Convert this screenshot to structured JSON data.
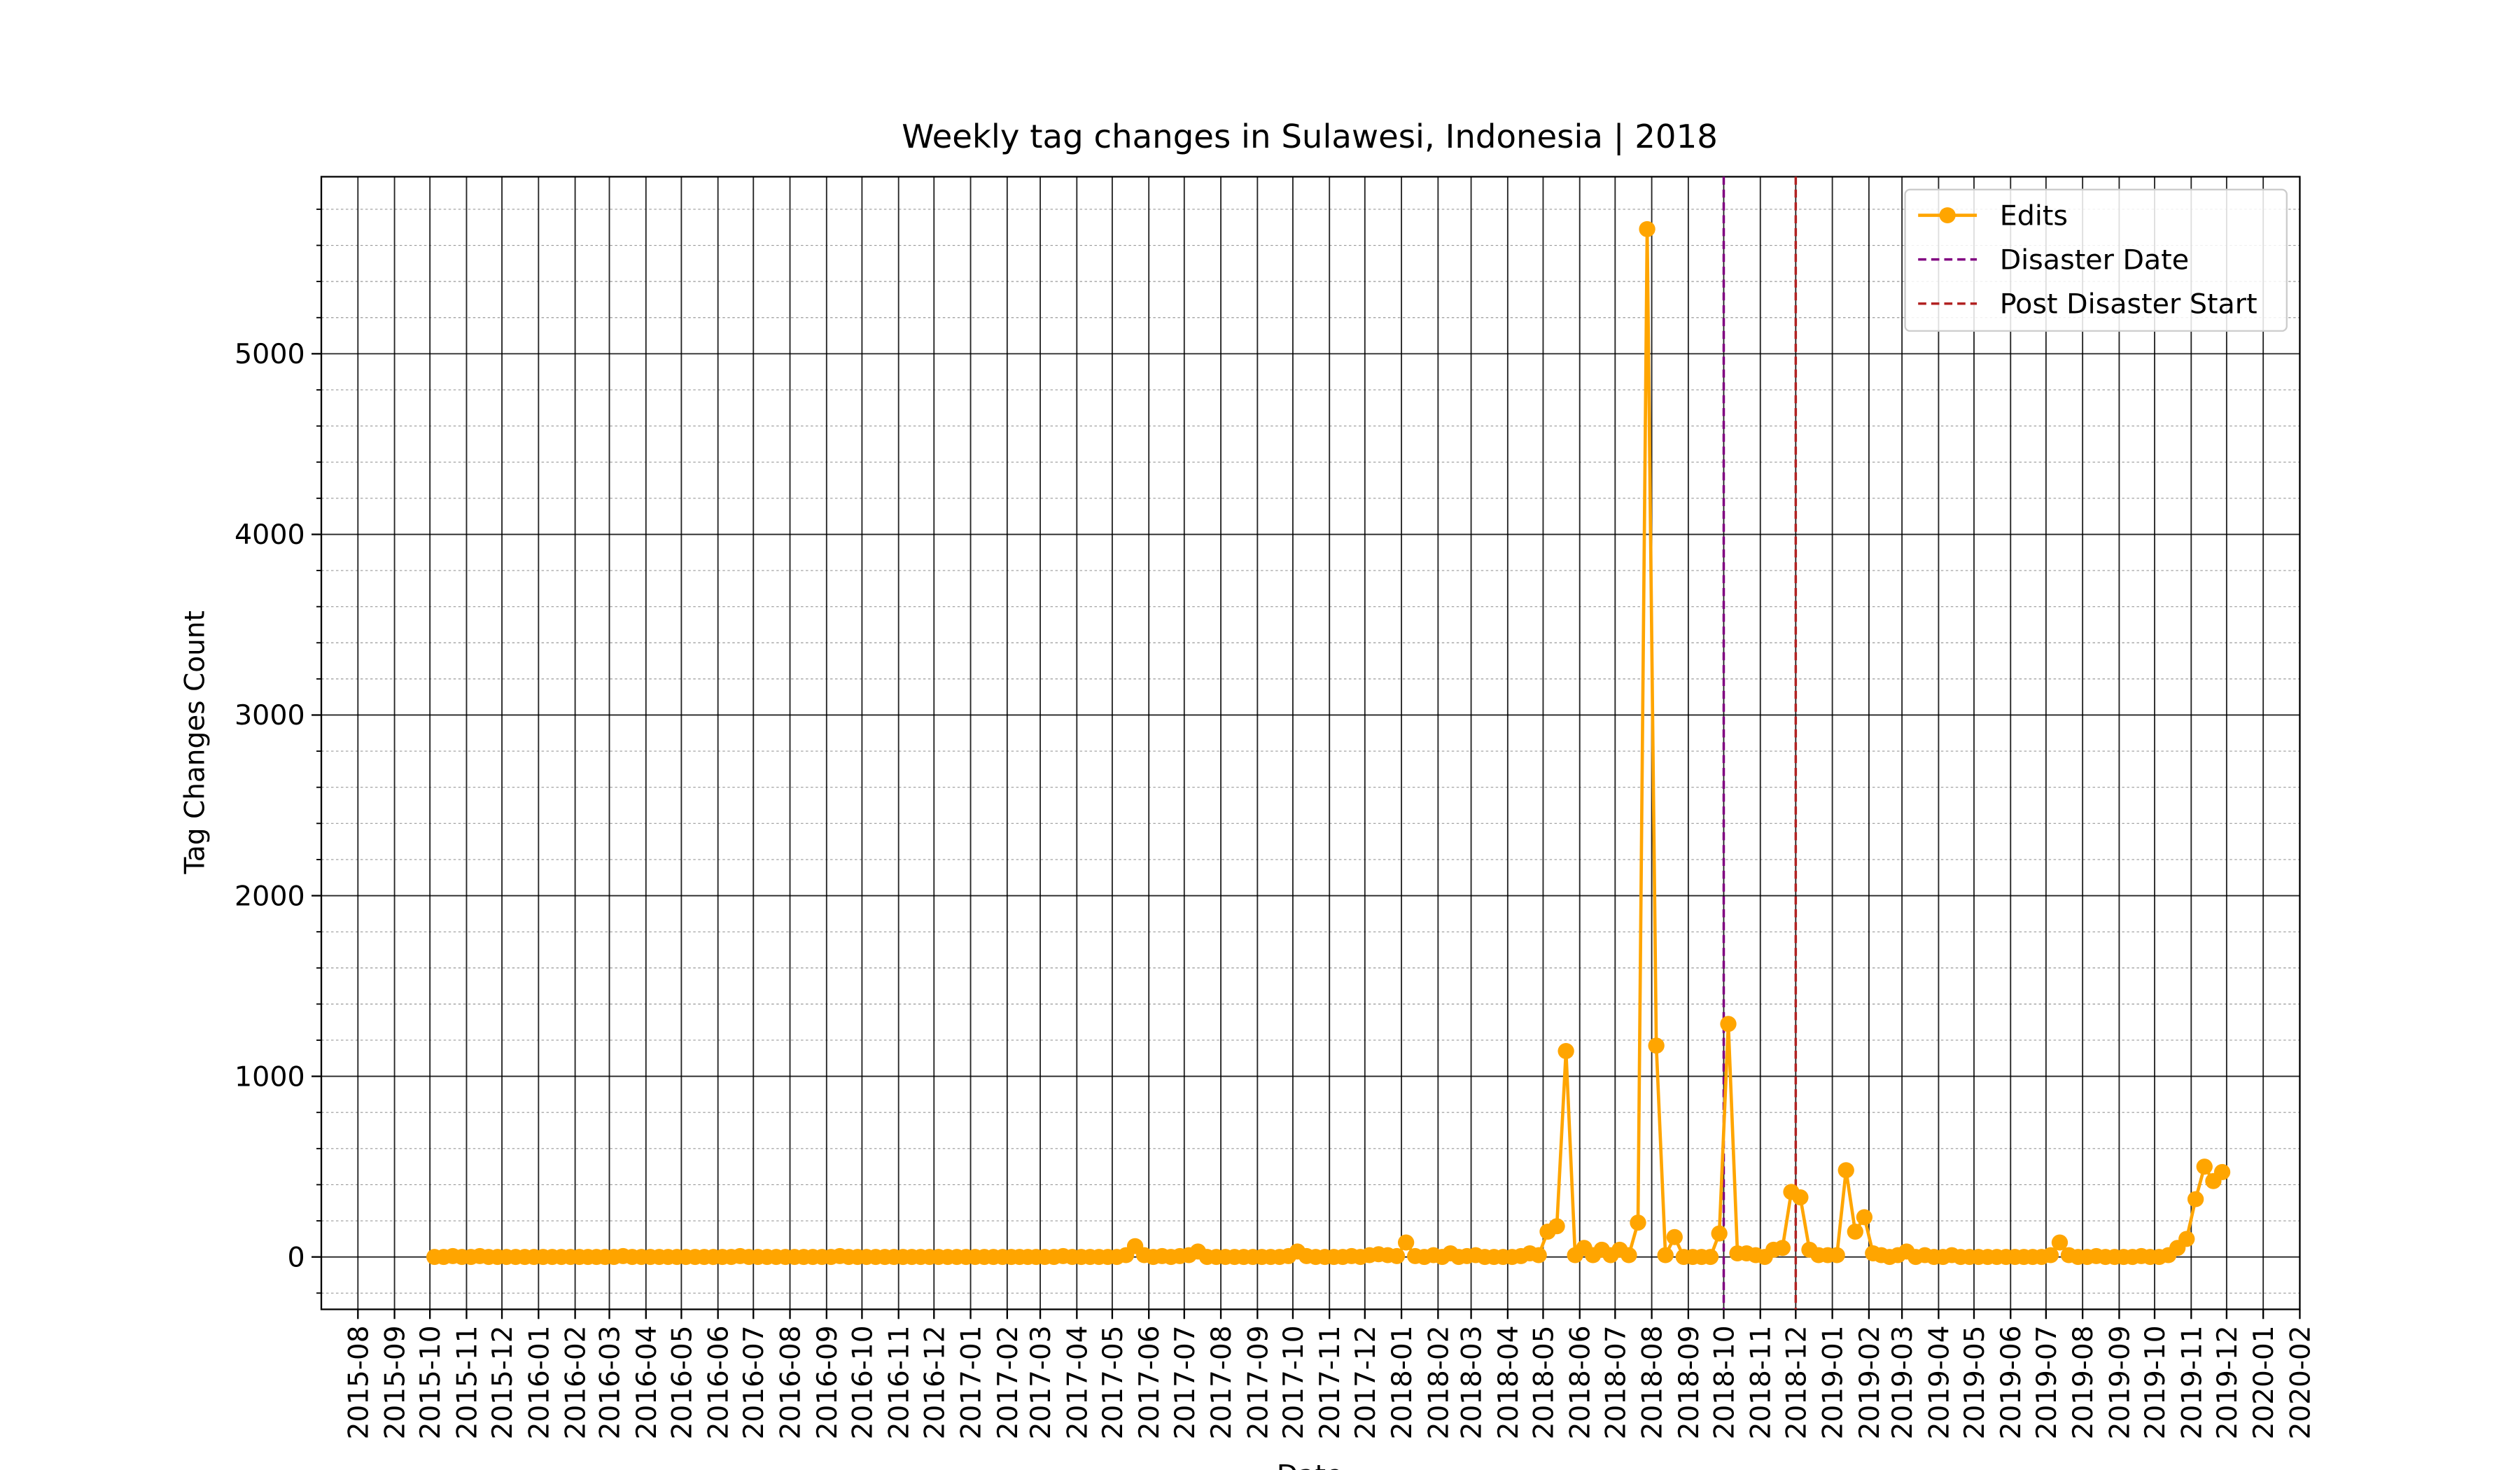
{
  "chart_data": {
    "type": "line",
    "title": "Weekly tag changes in Sulawesi, Indonesia | 2018",
    "xlabel": "Date",
    "ylabel": "Tag Changes Count",
    "x": [
      "2015-10",
      "2015-10",
      "2015-10",
      "2015-10",
      "2015-11",
      "2015-11",
      "2015-11",
      "2015-11",
      "2015-12",
      "2015-12",
      "2015-12",
      "2015-12",
      "2016-01",
      "2016-01",
      "2016-01",
      "2016-01",
      "2016-02",
      "2016-02",
      "2016-02",
      "2016-02",
      "2016-03",
      "2016-03",
      "2016-03",
      "2016-03",
      "2016-04",
      "2016-04",
      "2016-04",
      "2016-04",
      "2016-05",
      "2016-05",
      "2016-05",
      "2016-05",
      "2016-06",
      "2016-06",
      "2016-06",
      "2016-06",
      "2016-07",
      "2016-07",
      "2016-07",
      "2016-07",
      "2016-08",
      "2016-08",
      "2016-08",
      "2016-08",
      "2016-09",
      "2016-09",
      "2016-09",
      "2016-09",
      "2016-10",
      "2016-10",
      "2016-10",
      "2016-10",
      "2016-11",
      "2016-11",
      "2016-11",
      "2016-11",
      "2016-12",
      "2016-12",
      "2016-12",
      "2016-12",
      "2017-01",
      "2017-01",
      "2017-01",
      "2017-01",
      "2017-02",
      "2017-02",
      "2017-02",
      "2017-02",
      "2017-03",
      "2017-03",
      "2017-03",
      "2017-03",
      "2017-04",
      "2017-04",
      "2017-04",
      "2017-04",
      "2017-05",
      "2017-05",
      "2017-05",
      "2017-05",
      "2017-06",
      "2017-06",
      "2017-06",
      "2017-06",
      "2017-07",
      "2017-07",
      "2017-07",
      "2017-07",
      "2017-08",
      "2017-08",
      "2017-08",
      "2017-08",
      "2017-09",
      "2017-09",
      "2017-09",
      "2017-09",
      "2017-10",
      "2017-10",
      "2017-10",
      "2017-10",
      "2017-11",
      "2017-11",
      "2017-11",
      "2017-11",
      "2017-12",
      "2017-12",
      "2017-12",
      "2017-12",
      "2018-01",
      "2018-01",
      "2018-01",
      "2018-01",
      "2018-02",
      "2018-02",
      "2018-02",
      "2018-02",
      "2018-03",
      "2018-03",
      "2018-03",
      "2018-03",
      "2018-04",
      "2018-04",
      "2018-04",
      "2018-04",
      "2018-05",
      "2018-05",
      "2018-05",
      "2018-05",
      "2018-06",
      "2018-06",
      "2018-06",
      "2018-06",
      "2018-07",
      "2018-07",
      "2018-07",
      "2018-07",
      "2018-08",
      "2018-08",
      "2018-08",
      "2018-08",
      "2018-09",
      "2018-09",
      "2018-09",
      "2018-09",
      "2018-10",
      "2018-10",
      "2018-10",
      "2018-10",
      "2018-11",
      "2018-11",
      "2018-11",
      "2018-11",
      "2018-12",
      "2018-12",
      "2018-12",
      "2018-12",
      "2019-01",
      "2019-01",
      "2019-01",
      "2019-01",
      "2019-02",
      "2019-02",
      "2019-02",
      "2019-02",
      "2019-03",
      "2019-03",
      "2019-03",
      "2019-03",
      "2019-04",
      "2019-04",
      "2019-04",
      "2019-04",
      "2019-05",
      "2019-05",
      "2019-05",
      "2019-05",
      "2019-06",
      "2019-06",
      "2019-06",
      "2019-06",
      "2019-07",
      "2019-07",
      "2019-07",
      "2019-07",
      "2019-08",
      "2019-08",
      "2019-08",
      "2019-08",
      "2019-09",
      "2019-09",
      "2019-09",
      "2019-09",
      "2019-10",
      "2019-10",
      "2019-10",
      "2019-10",
      "2019-11",
      "2019-11",
      "2019-11",
      "2019-11"
    ],
    "series": [
      {
        "name": "Edits",
        "color": "#ffa500",
        "values": [
          0,
          0,
          5,
          0,
          0,
          5,
          0,
          0,
          0,
          0,
          0,
          0,
          0,
          0,
          0,
          0,
          0,
          0,
          0,
          0,
          0,
          5,
          0,
          0,
          0,
          0,
          0,
          0,
          0,
          0,
          0,
          0,
          0,
          0,
          5,
          0,
          0,
          0,
          0,
          0,
          0,
          0,
          0,
          0,
          0,
          5,
          0,
          0,
          0,
          0,
          0,
          0,
          0,
          0,
          0,
          0,
          0,
          0,
          0,
          0,
          0,
          0,
          0,
          0,
          0,
          0,
          0,
          0,
          0,
          0,
          5,
          0,
          0,
          0,
          0,
          0,
          0,
          10,
          60,
          10,
          0,
          5,
          0,
          5,
          10,
          30,
          0,
          0,
          0,
          0,
          0,
          0,
          0,
          0,
          0,
          5,
          30,
          5,
          0,
          0,
          0,
          0,
          5,
          0,
          10,
          15,
          10,
          5,
          80,
          5,
          0,
          10,
          0,
          20,
          0,
          5,
          10,
          0,
          0,
          0,
          0,
          5,
          20,
          10,
          140,
          170,
          1140,
          10,
          50,
          10,
          40,
          10,
          40,
          10,
          190,
          5690,
          1170,
          10,
          110,
          0,
          0,
          0,
          0,
          130,
          1290,
          20,
          20,
          10,
          0,
          40,
          50,
          360,
          330,
          40,
          10,
          10,
          10,
          480,
          140,
          220,
          20,
          10,
          0,
          10,
          30,
          0,
          10,
          0,
          0,
          10,
          0,
          0,
          0,
          0,
          0,
          0,
          0,
          0,
          0,
          0,
          10,
          80,
          10,
          0,
          0,
          5,
          0,
          0,
          0,
          0,
          5,
          0,
          0,
          10,
          50,
          100,
          320,
          500,
          420,
          470
        ]
      }
    ],
    "vlines": [
      {
        "name": "Disaster Date",
        "color": "#800080",
        "x": "2018-10"
      },
      {
        "name": "Post Disaster Start",
        "color": "#b22222",
        "x": "2018-12"
      }
    ],
    "xlim": [
      "2015-07",
      "2020-02"
    ],
    "xticks": [
      "2015-08",
      "2015-09",
      "2015-10",
      "2015-11",
      "2015-12",
      "2016-01",
      "2016-02",
      "2016-03",
      "2016-04",
      "2016-05",
      "2016-06",
      "2016-07",
      "2016-08",
      "2016-09",
      "2016-10",
      "2016-11",
      "2016-12",
      "2017-01",
      "2017-02",
      "2017-03",
      "2017-04",
      "2017-05",
      "2017-06",
      "2017-07",
      "2017-08",
      "2017-09",
      "2017-10",
      "2017-11",
      "2017-12",
      "2018-01",
      "2018-02",
      "2018-03",
      "2018-04",
      "2018-05",
      "2018-06",
      "2018-07",
      "2018-08",
      "2018-09",
      "2018-10",
      "2018-11",
      "2018-12",
      "2019-01",
      "2019-02",
      "2019-03",
      "2019-04",
      "2019-05",
      "2019-06",
      "2019-07",
      "2019-08",
      "2019-09",
      "2019-10",
      "2019-11",
      "2019-12",
      "2020-01",
      "2020-02"
    ],
    "ylim": [
      -290,
      5980
    ],
    "yticks": [
      0,
      1000,
      2000,
      3000,
      4000,
      5000
    ],
    "yminorticks": [
      -200,
      200,
      400,
      600,
      800,
      1200,
      1400,
      1600,
      1800,
      2200,
      2400,
      2600,
      2800,
      3200,
      3400,
      3600,
      3800,
      4200,
      4400,
      4600,
      4800,
      5200,
      5400,
      5600,
      5800
    ],
    "grid": true,
    "legend": "upper right"
  }
}
